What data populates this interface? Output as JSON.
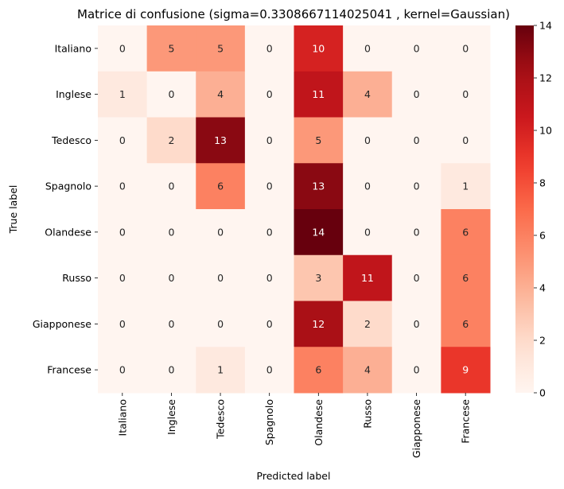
{
  "chart_data": {
    "type": "heatmap",
    "title": "Matrice di confusione (sigma=0.3308667114025041 , kernel=Gaussian)",
    "xlabel": "Predicted label",
    "ylabel": "True label",
    "row_labels": [
      "Italiano",
      "Inglese",
      "Tedesco",
      "Spagnolo",
      "Olandese",
      "Russo",
      "Giapponese",
      "Francese"
    ],
    "col_labels": [
      "Italiano",
      "Inglese",
      "Tedesco",
      "Spagnolo",
      "Olandese",
      "Russo",
      "Giapponese",
      "Francese"
    ],
    "values": [
      [
        0,
        5,
        5,
        0,
        10,
        0,
        0,
        0
      ],
      [
        1,
        0,
        4,
        0,
        11,
        4,
        0,
        0
      ],
      [
        0,
        2,
        13,
        0,
        5,
        0,
        0,
        0
      ],
      [
        0,
        0,
        6,
        0,
        13,
        0,
        0,
        1
      ],
      [
        0,
        0,
        0,
        0,
        14,
        0,
        0,
        6
      ],
      [
        0,
        0,
        0,
        0,
        3,
        11,
        0,
        6
      ],
      [
        0,
        0,
        0,
        0,
        12,
        2,
        0,
        6
      ],
      [
        0,
        0,
        1,
        0,
        6,
        4,
        0,
        9
      ]
    ],
    "colormap": "Reds",
    "vmin": 0,
    "vmax": 14,
    "colorbar_ticks": [
      "0",
      "2",
      "4",
      "6",
      "8",
      "10",
      "12",
      "14"
    ]
  }
}
